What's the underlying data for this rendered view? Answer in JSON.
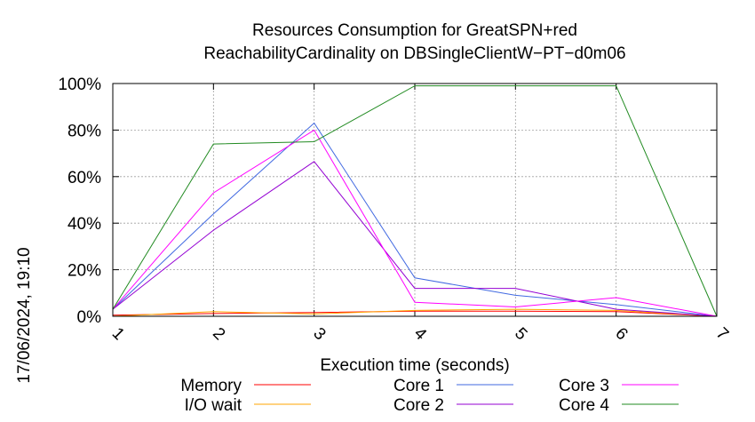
{
  "chart_data": {
    "type": "line",
    "title": [
      "Resources Consumption for GreatSPN+red",
      "ReachabilityCardinality on DBSingleClientW−PT−d0m06"
    ],
    "xlabel": "Execution time (seconds)",
    "ylabel": "",
    "side_label": "17/06/2024, 19:10",
    "x": [
      1,
      2,
      3,
      4,
      5,
      6,
      7
    ],
    "xlim": [
      1,
      7
    ],
    "ylim": [
      0,
      100
    ],
    "y_ticks": [
      "0%",
      "20%",
      "40%",
      "60%",
      "80%",
      "100%"
    ],
    "x_ticks": [
      "1",
      "2",
      "3",
      "4",
      "5",
      "6",
      "7"
    ],
    "grid": true,
    "legend_position": "bottom",
    "series": [
      {
        "name": "Memory",
        "color": "#ff0000",
        "values": [
          0.5,
          1.2,
          1.6,
          2.2,
          2.2,
          2.0,
          0
        ]
      },
      {
        "name": "I/O wait",
        "color": "#ffa500",
        "values": [
          0,
          2.0,
          1.0,
          2.5,
          3.0,
          2.5,
          0
        ]
      },
      {
        "name": "Core 1",
        "color": "#4169e1",
        "values": [
          3,
          44,
          83,
          16.5,
          9,
          5,
          0
        ]
      },
      {
        "name": "Core 2",
        "color": "#9400d3",
        "values": [
          3,
          37,
          66.5,
          12,
          12,
          3,
          0
        ]
      },
      {
        "name": "Core 3",
        "color": "#ff00ff",
        "values": [
          3,
          53,
          80,
          6,
          4,
          8,
          0
        ]
      },
      {
        "name": "Core 4",
        "color": "#228b22",
        "values": [
          3,
          74,
          75,
          99,
          99,
          99,
          0
        ]
      }
    ]
  }
}
